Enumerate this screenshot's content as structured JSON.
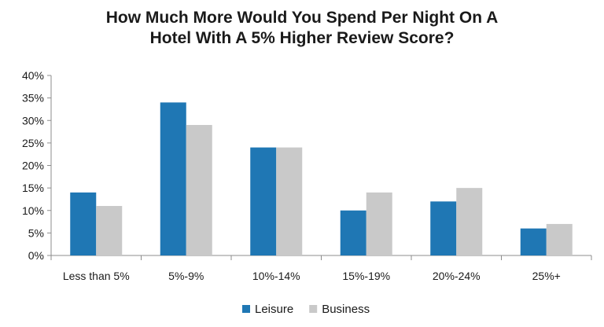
{
  "chart_data": {
    "type": "bar",
    "title_lines": [
      "How Much More Would You Spend Per Night On A",
      "Hotel With A 5% Higher Review Score?"
    ],
    "categories": [
      "Less than 5%",
      "5%-9%",
      "10%-14%",
      "15%-19%",
      "20%-24%",
      "25%+"
    ],
    "series": [
      {
        "name": "Leisure",
        "color": "#1f77b4",
        "values": [
          14,
          34,
          24,
          10,
          12,
          6
        ]
      },
      {
        "name": "Business",
        "color": "#c9c9c9",
        "values": [
          11,
          29,
          24,
          14,
          15,
          7
        ]
      }
    ],
    "ylim": [
      0,
      40
    ],
    "yticks": [
      "0%",
      "5%",
      "10%",
      "15%",
      "20%",
      "25%",
      "30%",
      "35%",
      "40%"
    ],
    "grid": false,
    "legend_position": "bottom-center"
  }
}
